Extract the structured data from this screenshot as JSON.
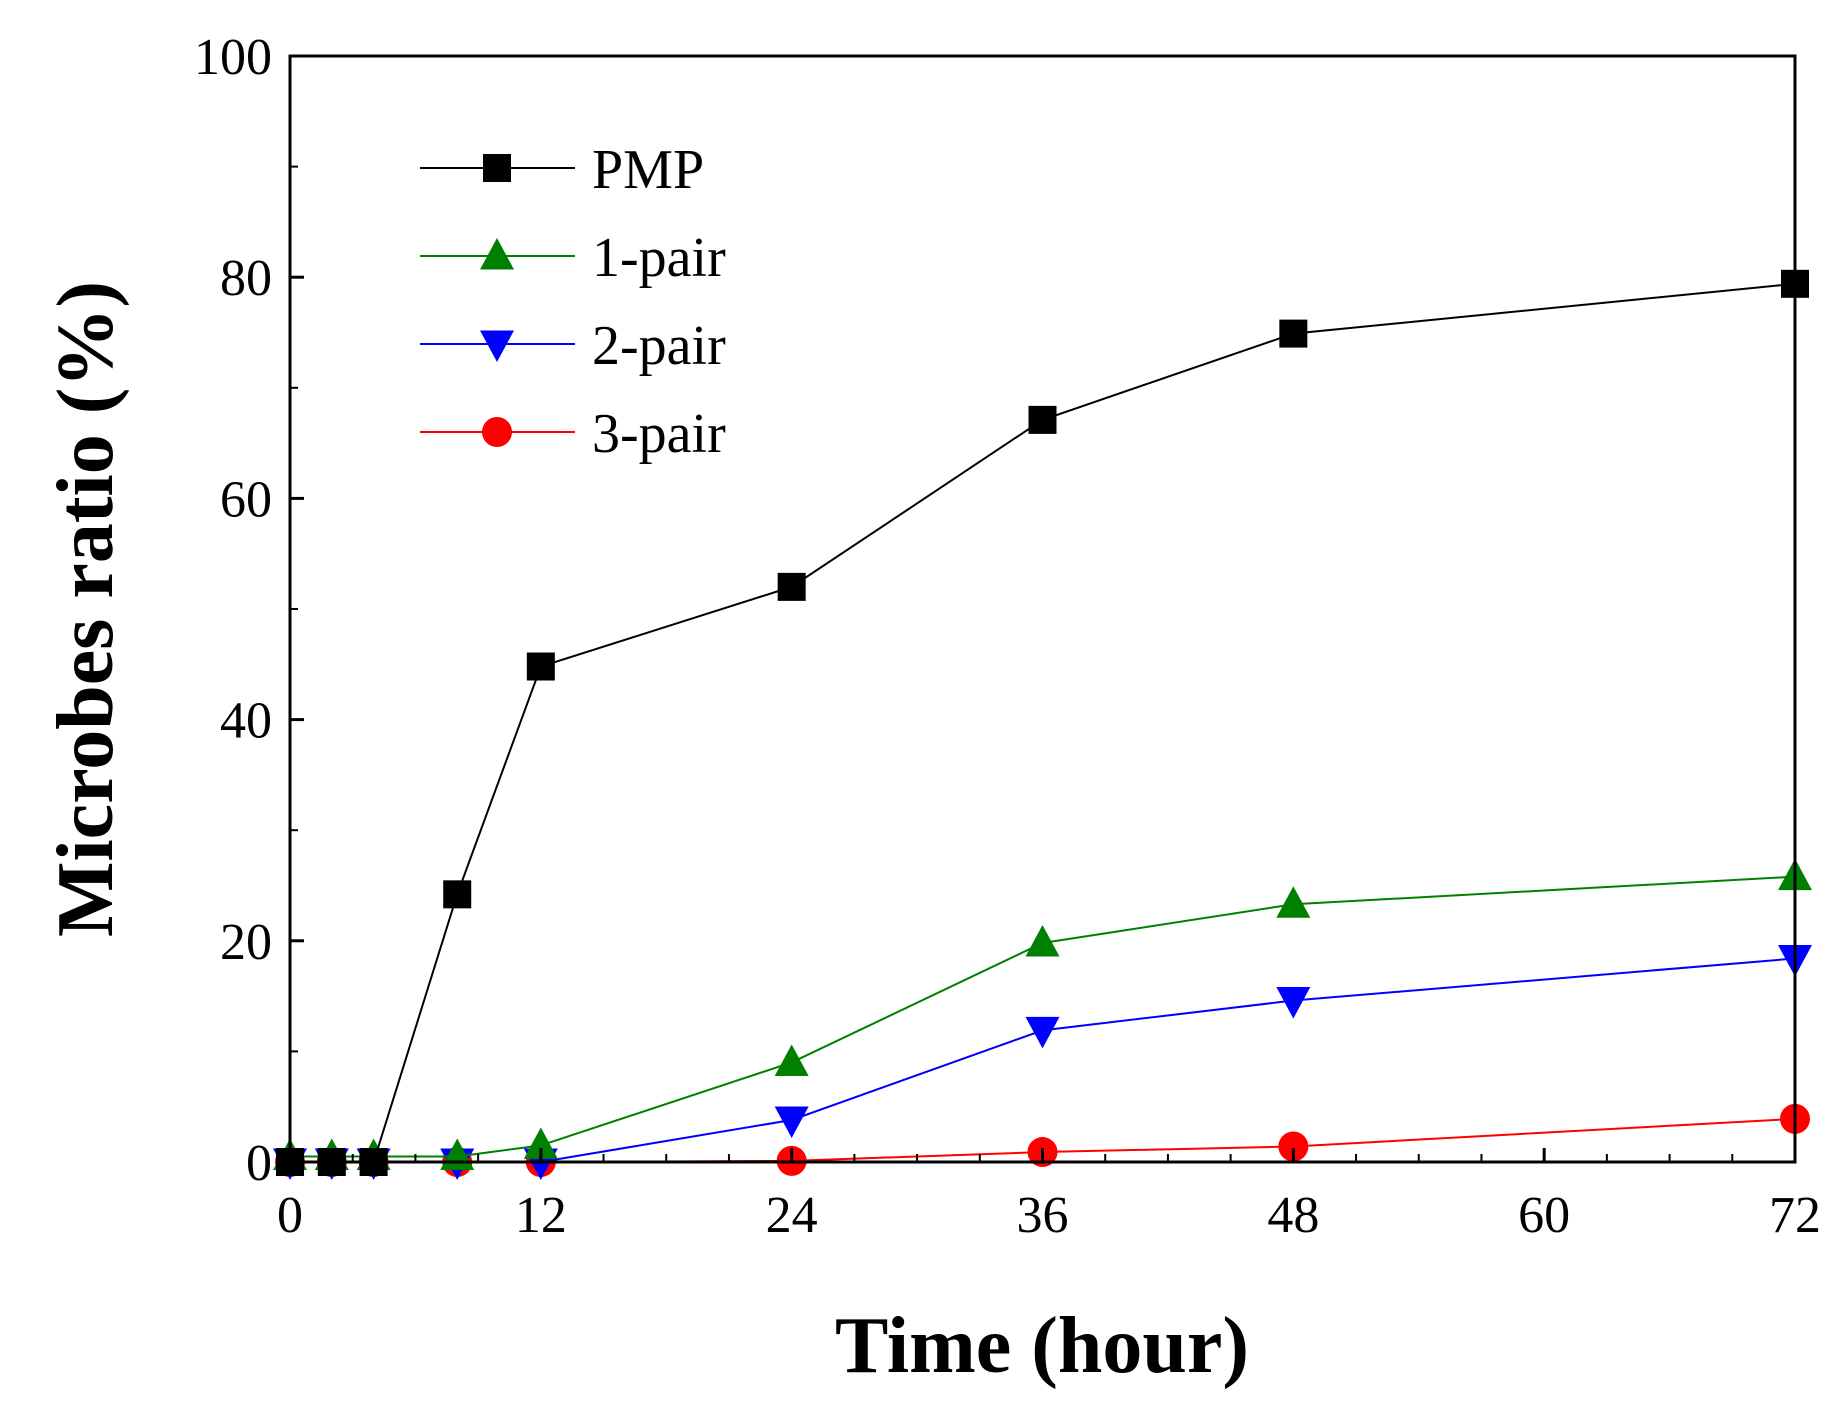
{
  "chart_data": {
    "type": "line",
    "title": "",
    "xlabel": "Time (hour)",
    "ylabel": "Microbes ratio (%)",
    "xlim": [
      0,
      72
    ],
    "ylim": [
      0,
      100
    ],
    "xticks": [
      0,
      12,
      24,
      36,
      48,
      60,
      72
    ],
    "yticks": [
      0,
      20,
      40,
      60,
      80,
      100
    ],
    "legend_position": "top-left",
    "grid": false,
    "series": [
      {
        "name": "PMP",
        "color": "#000000",
        "marker": "square",
        "x": [
          0,
          2,
          4,
          8,
          12,
          24,
          36,
          48,
          72
        ],
        "y": [
          0,
          0,
          0,
          24.2,
          44.8,
          52.0,
          67.1,
          74.9,
          79.4
        ]
      },
      {
        "name": "1-pair",
        "color": "#008000",
        "marker": "triangle-up",
        "x": [
          0,
          2,
          4,
          8,
          12,
          24,
          36,
          48,
          72
        ],
        "y": [
          0.5,
          0.5,
          0.5,
          0.5,
          1.5,
          9.0,
          19.8,
          23.3,
          25.8
        ]
      },
      {
        "name": "2-pair",
        "color": "#0000ff",
        "marker": "triangle-down",
        "x": [
          0,
          2,
          4,
          8,
          12,
          24,
          36,
          48,
          72
        ],
        "y": [
          0,
          0,
          0,
          0,
          0,
          3.8,
          11.9,
          14.6,
          18.4
        ]
      },
      {
        "name": "3-pair",
        "color": "#ff0000",
        "marker": "circle",
        "x": [
          0,
          2,
          4,
          8,
          12,
          24,
          36,
          48,
          72
        ],
        "y": [
          0,
          0,
          0,
          0,
          0,
          0.1,
          0.9,
          1.4,
          3.9
        ]
      }
    ]
  }
}
